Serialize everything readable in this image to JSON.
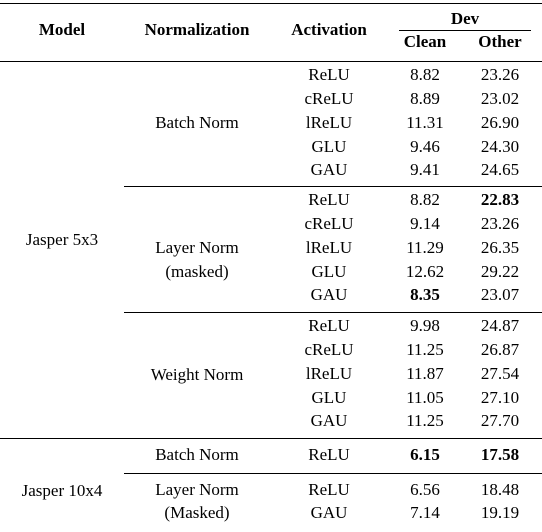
{
  "headers": {
    "model": "Model",
    "normalization": "Normalization",
    "activation": "Activation",
    "dev": "Dev",
    "clean": "Clean",
    "other": "Other"
  },
  "groups": {
    "j5_model": "Jasper 5x3",
    "j10_model": "Jasper 10x4",
    "bn": "Batch Norm",
    "ln_l1": "Layer Norm",
    "ln_l2": "(masked)",
    "wn": "Weight Norm",
    "bn2": "Batch Norm",
    "ln2_l1": "Layer Norm",
    "ln2_l2": "(Masked)"
  },
  "rows": [
    {
      "act": "ReLU",
      "clean": "8.82",
      "other": "23.26"
    },
    {
      "act": "cReLU",
      "clean": "8.89",
      "other": "23.02"
    },
    {
      "act": "lReLU",
      "clean": "11.31",
      "other": "26.90"
    },
    {
      "act": "GLU",
      "clean": "9.46",
      "other": "24.30"
    },
    {
      "act": "GAU",
      "clean": "9.41",
      "other": "24.65"
    },
    {
      "act": "ReLU",
      "clean": "8.82",
      "other": "22.83"
    },
    {
      "act": "cReLU",
      "clean": "9.14",
      "other": "23.26"
    },
    {
      "act": "lReLU",
      "clean": "11.29",
      "other": "26.35"
    },
    {
      "act": "GLU",
      "clean": "12.62",
      "other": "29.22"
    },
    {
      "act": "GAU",
      "clean": "8.35",
      "other": "23.07"
    },
    {
      "act": "ReLU",
      "clean": "9.98",
      "other": "24.87"
    },
    {
      "act": "cReLU",
      "clean": "11.25",
      "other": "26.87"
    },
    {
      "act": "lReLU",
      "clean": "11.87",
      "other": "27.54"
    },
    {
      "act": "GLU",
      "clean": "11.05",
      "other": "27.10"
    },
    {
      "act": "GAU",
      "clean": "11.25",
      "other": "27.70"
    },
    {
      "act": "ReLU",
      "clean": "6.15",
      "other": "17.58"
    },
    {
      "act": "ReLU",
      "clean": "6.56",
      "other": "18.48"
    },
    {
      "act": "GAU",
      "clean": "7.14",
      "other": "19.19"
    }
  ]
}
